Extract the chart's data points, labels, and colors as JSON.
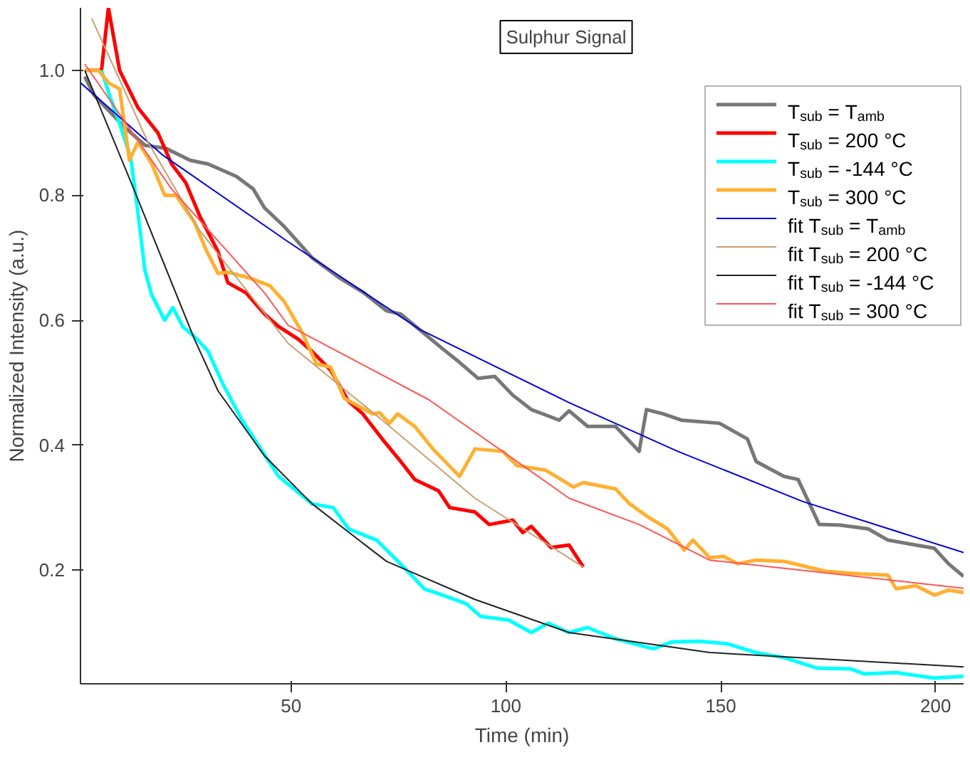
{
  "chart_data": {
    "type": "line",
    "title": "Sulphur Signal",
    "xlabel": "Time (min)",
    "ylabel": "Normalized Intensity (a.u.)",
    "xlim": [
      1,
      206.5
    ],
    "ylim": [
      0.018,
      1.1
    ],
    "xticks": [
      50,
      100,
      150,
      200
    ],
    "yticks": [
      0.2,
      0.4,
      0.6,
      0.8,
      {
        "value": 1,
        "label": "1.0"
      }
    ],
    "grid": false,
    "legend": "top right",
    "line_style": "solid",
    "marker": "none",
    "series": [
      {
        "name": "T$_{sub}$ = T$_{amb}$",
        "color": "#777777",
        "x": [
          2.0,
          4.2,
          11.1,
          16.0,
          20.9,
          26.5,
          30.7,
          37.3,
          41.2,
          43.8,
          48.4,
          54.9,
          61.4,
          66.7,
          72.2,
          75.5,
          85.3,
          88.6,
          93.5,
          97.4,
          101.6,
          105.9,
          112.4,
          114.7,
          119.0,
          125.5,
          131.0,
          132.7,
          136.6,
          140.8,
          149.7,
          156.2,
          158.2,
          164.7,
          168.0,
          172.9,
          177.8,
          184.3,
          188.9,
          195.4,
          199.7,
          203.0,
          206.5
        ],
        "values": [
          0.99,
          0.96,
          0.91,
          0.88,
          0.875,
          0.856,
          0.85,
          0.83,
          0.81,
          0.78,
          0.75,
          0.7,
          0.667,
          0.645,
          0.615,
          0.61,
          0.554,
          0.536,
          0.507,
          0.51,
          0.48,
          0.457,
          0.44,
          0.455,
          0.43,
          0.43,
          0.39,
          0.457,
          0.45,
          0.44,
          0.435,
          0.41,
          0.374,
          0.35,
          0.345,
          0.273,
          0.272,
          0.266,
          0.248,
          0.24,
          0.235,
          0.21,
          0.19
        ]
      },
      {
        "name": "T$_{sub}$ = 200 °C",
        "color": "#ff0000",
        "x": [
          2.0,
          5.9,
          7.5,
          10.1,
          14.4,
          19.0,
          22.2,
          25.5,
          28.8,
          33.0,
          35.3,
          39.5,
          43.8,
          47.1,
          51.6,
          54.9,
          59.2,
          63.4,
          66.7,
          71.2,
          75.5,
          78.8,
          84.3,
          86.9,
          92.8,
          96.1,
          101.6,
          103.9,
          105.9,
          110.5,
          114.7,
          118.0
        ],
        "values": [
          1.0,
          1.0,
          1.1,
          1.0,
          0.94,
          0.9,
          0.85,
          0.82,
          0.766,
          0.71,
          0.66,
          0.644,
          0.61,
          0.59,
          0.57,
          0.55,
          0.52,
          0.47,
          0.45,
          0.41,
          0.374,
          0.345,
          0.327,
          0.3,
          0.293,
          0.273,
          0.28,
          0.26,
          0.27,
          0.236,
          0.24,
          0.205
        ]
      },
      {
        "name": "T$_{sub}$ = -144 °C",
        "color": "#00ffff",
        "x": [
          5.9,
          7.5,
          10.1,
          12.7,
          14.4,
          16.0,
          17.6,
          20.6,
          22.5,
          24.8,
          28.1,
          30.7,
          34.0,
          38.6,
          40.5,
          47.1,
          54.9,
          59.8,
          63.4,
          69.9,
          75.5,
          81.0,
          85.3,
          90.8,
          94.1,
          100.7,
          105.9,
          109.8,
          114.7,
          119.0,
          125.5,
          134.3,
          138.6,
          145.1,
          151.6,
          158.2,
          164.7,
          172.5,
          180.1,
          183.3,
          190.8,
          199.7,
          206.5
        ],
        "values": [
          1.0,
          0.965,
          0.915,
          0.86,
          0.77,
          0.68,
          0.64,
          0.6,
          0.62,
          0.59,
          0.57,
          0.55,
          0.5,
          0.44,
          0.42,
          0.35,
          0.306,
          0.3,
          0.266,
          0.248,
          0.21,
          0.17,
          0.16,
          0.146,
          0.126,
          0.12,
          0.1,
          0.115,
          0.1,
          0.108,
          0.09,
          0.074,
          0.085,
          0.086,
          0.082,
          0.068,
          0.06,
          0.043,
          0.042,
          0.034,
          0.036,
          0.027,
          0.03
        ]
      },
      {
        "name": "T$_{sub}$ = 300 °C",
        "color": "#ffb030",
        "x": [
          2.0,
          5.2,
          7.5,
          10.1,
          12.4,
          14.4,
          17.6,
          20.6,
          23.2,
          27.5,
          30.4,
          33.0,
          35.3,
          40.5,
          45.1,
          48.4,
          52.6,
          55.9,
          59.2,
          62.4,
          69.0,
          70.6,
          72.9,
          74.8,
          78.8,
          83.0,
          89.2,
          92.8,
          99.3,
          102.6,
          109.2,
          115.7,
          118.0,
          125.5,
          128.8,
          133.3,
          137.6,
          141.5,
          143.5,
          147.4,
          150.7,
          153.9,
          158.2,
          164.7,
          174.5,
          182.4,
          188.9,
          190.8,
          195.4,
          199.7,
          203.0,
          206.5
        ],
        "values": [
          1.0,
          1.0,
          0.98,
          0.97,
          0.856,
          0.885,
          0.85,
          0.8,
          0.8,
          0.757,
          0.71,
          0.675,
          0.677,
          0.667,
          0.655,
          0.63,
          0.58,
          0.53,
          0.525,
          0.475,
          0.45,
          0.452,
          0.435,
          0.45,
          0.43,
          0.394,
          0.35,
          0.394,
          0.39,
          0.367,
          0.36,
          0.333,
          0.34,
          0.33,
          0.306,
          0.284,
          0.266,
          0.232,
          0.248,
          0.22,
          0.222,
          0.21,
          0.216,
          0.214,
          0.198,
          0.194,
          0.192,
          0.17,
          0.175,
          0.16,
          0.168,
          0.164
        ]
      },
      {
        "name": "fit T$_{sub}$ = T$_{amb}$",
        "color": "#0000dd",
        "x": [
          1,
          20,
          49,
          80,
          114.7,
          140,
          169,
          206.5
        ],
        "values": [
          0.98,
          0.865,
          0.727,
          0.585,
          0.468,
          0.39,
          0.31,
          0.228
        ]
      },
      {
        "name": "fit T$_{sub}$ = 200 °C",
        "color": "#c8a070",
        "x": [
          3.6,
          16.7,
          28.8,
          49.3,
          71.2,
          92.8,
          118
        ],
        "values": [
          1.083,
          0.885,
          0.743,
          0.563,
          0.44,
          0.315,
          0.205
        ]
      },
      {
        "name": "fit T$_{sub}$ = -144 °C",
        "color": "#222222",
        "x": [
          2,
          13.4,
          27.5,
          33,
          43.8,
          54.9,
          72.2,
          92.8,
          114.7,
          147.4,
          206.5
        ],
        "values": [
          1.0,
          0.81,
          0.57,
          0.487,
          0.383,
          0.306,
          0.214,
          0.153,
          0.1,
          0.068,
          0.045
        ]
      },
      {
        "name": "fit T$_{sub}$ = 300 °C",
        "color": "#ff5555",
        "x": [
          2,
          22.2,
          43.8,
          49.3,
          82,
          104,
          114.7,
          131,
          147.4,
          206.5
        ],
        "values": [
          1.01,
          0.81,
          0.644,
          0.592,
          0.473,
          0.367,
          0.315,
          0.273,
          0.216,
          0.171
        ]
      }
    ]
  }
}
